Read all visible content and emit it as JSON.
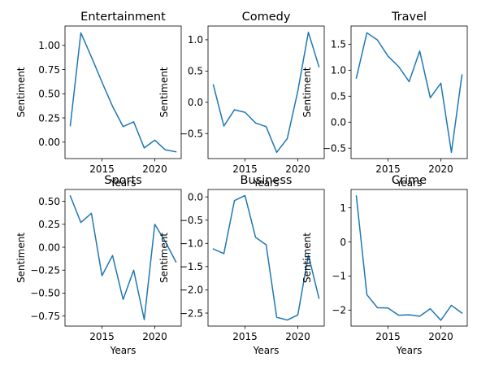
{
  "chart_data": [
    {
      "type": "line",
      "title": "Entertainment",
      "xlabel": "Years",
      "ylabel": "Sentiment",
      "color": "#1f77b4",
      "x": [
        2012,
        2013,
        2014,
        2015,
        2016,
        2017,
        2018,
        2019,
        2020,
        2021,
        2022
      ],
      "y": [
        0.17,
        1.13,
        0.88,
        0.62,
        0.37,
        0.16,
        0.21,
        -0.06,
        0.02,
        -0.08,
        -0.1
      ],
      "xlim": [
        2011.5,
        2022.5
      ],
      "ylim": [
        -0.17,
        1.2
      ],
      "xticks": [
        2015,
        2020
      ],
      "yticks": [
        -0.25,
        0.0,
        0.25,
        0.5,
        0.75,
        1.0
      ],
      "yticklabels": [
        "",
        "0.00",
        "0.25",
        "0.50",
        "0.75",
        "1.00"
      ],
      "show_xticklabels": true
    },
    {
      "type": "line",
      "title": "Comedy",
      "xlabel": "Years",
      "ylabel": "Sentiment",
      "color": "#1f77b4",
      "x": [
        2012,
        2013,
        2014,
        2015,
        2016,
        2017,
        2018,
        2019,
        2020,
        2021,
        2022
      ],
      "y": [
        0.28,
        -0.38,
        -0.12,
        -0.16,
        -0.33,
        -0.39,
        -0.8,
        -0.58,
        0.18,
        1.12,
        0.57
      ],
      "xlim": [
        2011.5,
        2022.5
      ],
      "ylim": [
        -0.9,
        1.22
      ],
      "xticks": [
        2015,
        2020
      ],
      "yticks": [
        -0.5,
        0.0,
        0.5,
        1.0
      ],
      "yticklabels": [
        "−0.5",
        "0.0",
        "0.5",
        "1.0"
      ],
      "show_xticklabels": true
    },
    {
      "type": "line",
      "title": "Travel",
      "xlabel": "Years",
      "ylabel": "Sentiment",
      "color": "#1f77b4",
      "x": [
        2012,
        2013,
        2014,
        2015,
        2016,
        2017,
        2018,
        2019,
        2020,
        2021,
        2022
      ],
      "y": [
        0.85,
        1.72,
        1.58,
        1.27,
        1.07,
        0.78,
        1.37,
        0.47,
        0.75,
        -0.58,
        0.91
      ],
      "xlim": [
        2011.5,
        2022.5
      ],
      "ylim": [
        -0.7,
        1.85
      ],
      "xticks": [
        2015,
        2020
      ],
      "yticks": [
        -0.5,
        0.0,
        0.5,
        1.0,
        1.5
      ],
      "yticklabels": [
        "−0.5",
        "0.0",
        "0.5",
        "1.0",
        "1.5"
      ],
      "show_xticklabels": true
    },
    {
      "type": "line",
      "title": "Sports",
      "xlabel": "Years",
      "ylabel": "Sentiment",
      "color": "#1f77b4",
      "x": [
        2012,
        2013,
        2014,
        2015,
        2016,
        2017,
        2018,
        2019,
        2020,
        2021,
        2022
      ],
      "y": [
        0.56,
        0.27,
        0.37,
        -0.31,
        -0.09,
        -0.57,
        -0.25,
        -0.79,
        0.25,
        0.06,
        -0.16
      ],
      "xlim": [
        2011.5,
        2022.5
      ],
      "ylim": [
        -0.86,
        0.63
      ],
      "xticks": [
        2015,
        2020
      ],
      "yticks": [
        -0.75,
        -0.5,
        -0.25,
        0.0,
        0.25,
        0.5
      ],
      "yticklabels": [
        "−0.75",
        "−0.50",
        "−0.25",
        "0.00",
        "0.25",
        "0.50"
      ],
      "show_xticklabels": true
    },
    {
      "type": "line",
      "title": "Business",
      "xlabel": "Years",
      "ylabel": "Sentiment",
      "color": "#1f77b4",
      "x": [
        2012,
        2013,
        2014,
        2015,
        2016,
        2017,
        2018,
        2019,
        2020,
        2021,
        2022
      ],
      "y": [
        -1.12,
        -1.22,
        -0.08,
        0.03,
        -0.87,
        -1.03,
        -2.59,
        -2.65,
        -2.54,
        -1.25,
        -2.18
      ],
      "xlim": [
        2011.5,
        2022.5
      ],
      "ylim": [
        -2.78,
        0.16
      ],
      "xticks": [
        2015,
        2020
      ],
      "yticks": [
        -2.5,
        -2.0,
        -1.5,
        -1.0,
        -0.5,
        0.0
      ],
      "yticklabels": [
        "−2.5",
        "−2.0",
        "−1.5",
        "−1.0",
        "−0.5",
        "0.0"
      ],
      "show_xticklabels": true
    },
    {
      "type": "line",
      "title": "Crime",
      "xlabel": "Years",
      "ylabel": "Sentiment",
      "color": "#1f77b4",
      "x": [
        2012,
        2013,
        2014,
        2015,
        2016,
        2017,
        2018,
        2019,
        2020,
        2021,
        2022
      ],
      "y": [
        1.35,
        -1.55,
        -1.93,
        -1.94,
        -2.15,
        -2.14,
        -2.18,
        -1.96,
        -2.3,
        -1.86,
        -2.09
      ],
      "xlim": [
        2011.5,
        2022.5
      ],
      "ylim": [
        -2.47,
        1.54
      ],
      "xticks": [
        2015,
        2020
      ],
      "yticks": [
        -2.0,
        -1.0,
        0.0,
        1.0
      ],
      "yticklabels": [
        "−2",
        "−1",
        "0",
        "1"
      ],
      "show_xticklabels": true
    }
  ]
}
